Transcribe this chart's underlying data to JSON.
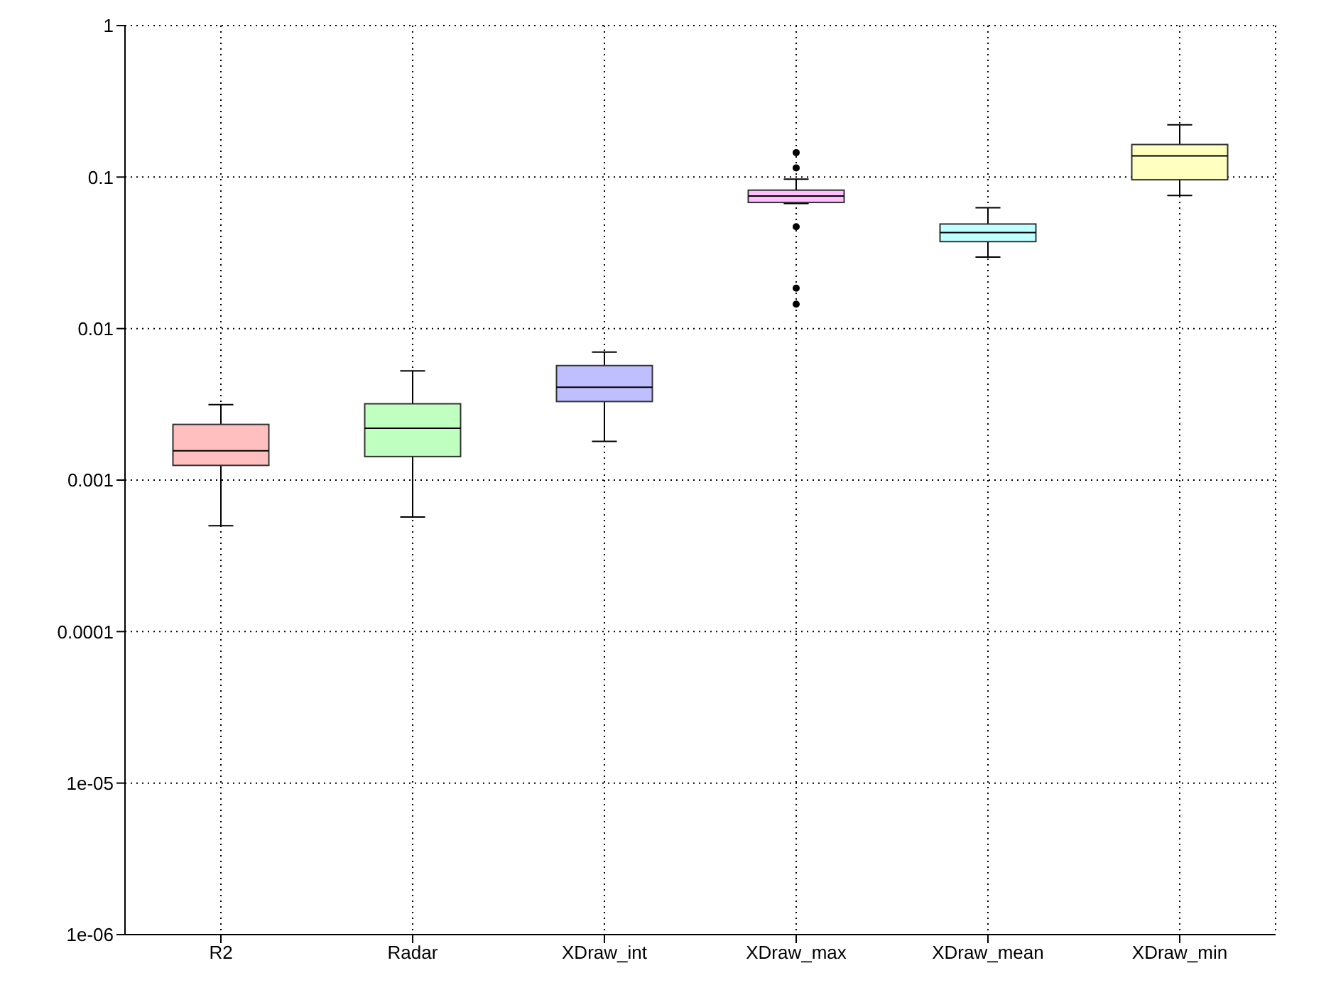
{
  "chart_data": {
    "type": "box",
    "categories": [
      "R2",
      "Radar",
      "XDraw_int",
      "XDraw_max",
      "XDraw_mean",
      "XDraw_min"
    ],
    "boxes": [
      {
        "low": 0.0005,
        "q1": 0.00125,
        "median": 0.00156,
        "q3": 0.00233,
        "high": 0.00315
      },
      {
        "low": 0.00057,
        "q1": 0.00143,
        "median": 0.0022,
        "q3": 0.00319,
        "high": 0.00526
      },
      {
        "low": 0.0018,
        "q1": 0.0033,
        "median": 0.0041,
        "q3": 0.0057,
        "high": 0.007
      },
      {
        "low": 0.067,
        "q1": 0.068,
        "median": 0.075,
        "q3": 0.082,
        "high": 0.097,
        "outliers": [
          0.145,
          0.115,
          0.047,
          0.0185,
          0.0145
        ]
      },
      {
        "low": 0.0296,
        "q1": 0.0375,
        "median": 0.043,
        "q3": 0.049,
        "high": 0.0627
      },
      {
        "low": 0.0757,
        "q1": 0.096,
        "median": 0.138,
        "q3": 0.164,
        "high": 0.221
      }
    ],
    "colors": [
      "#ffbfbf",
      "#bfffbf",
      "#bfbfff",
      "#ffbfff",
      "#bfffff",
      "#ffffbf"
    ],
    "log": true,
    "ylim": [
      1e-06,
      1
    ],
    "yticks": [
      {
        "value": 1e-06,
        "label": "1e-06"
      },
      {
        "value": 1e-05,
        "label": "1e-05"
      },
      0.0001,
      0.001,
      0.01,
      0.1,
      1
    ],
    "grid": true
  }
}
